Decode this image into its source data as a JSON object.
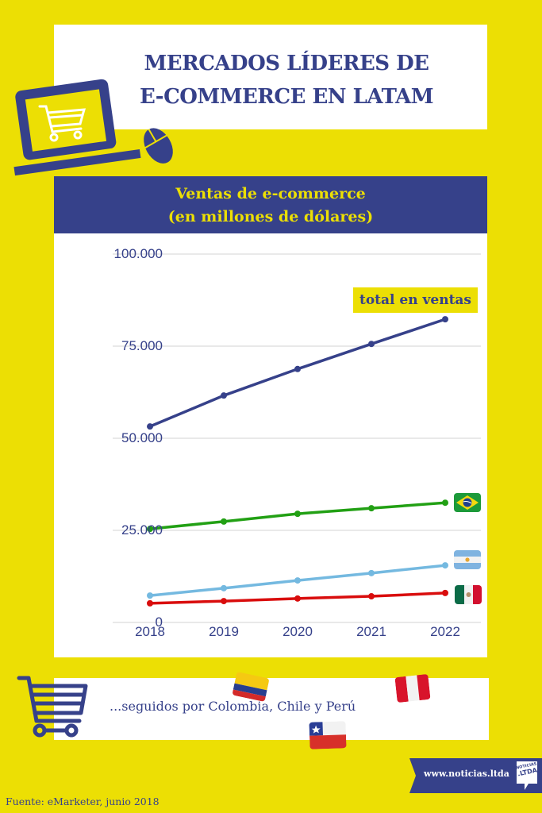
{
  "header": {
    "title_line1": "MERCADOS LÍDERES DE",
    "title_line2": "E-COMMERCE EN LATAM"
  },
  "chart_header": {
    "line1": "Ventas de e-commerce",
    "line2": "(en  millones de dólares)"
  },
  "chart_data": {
    "type": "line",
    "title": "Ventas de e-commerce (en millones de dólares)",
    "xlabel": "",
    "ylabel": "",
    "x": [
      "2018",
      "2019",
      "2020",
      "2021",
      "2022"
    ],
    "ylim": [
      0,
      100000
    ],
    "yticks": [
      "0",
      "25.000",
      "50.000",
      "75.000",
      "100.000"
    ],
    "grid": true,
    "series": [
      {
        "name": "total en ventas",
        "color": "#36418a",
        "values": [
          53200,
          61600,
          68800,
          75600,
          82300
        ]
      },
      {
        "name": "Brasil",
        "color": "#22a014",
        "values": [
          25400,
          27400,
          29500,
          31000,
          32500
        ]
      },
      {
        "name": "Argentina",
        "color": "#74b9e0",
        "values": [
          7300,
          9300,
          11400,
          13400,
          15500
        ]
      },
      {
        "name": "México",
        "color": "#d90d0d",
        "values": [
          5200,
          5800,
          6500,
          7100,
          8000
        ]
      }
    ],
    "annotations": [
      "total en ventas"
    ]
  },
  "footer_box": {
    "text": "...seguidos por Colombia, Chile y Perú",
    "flags": [
      "colombia-flag",
      "peru-flag",
      "chile-flag"
    ]
  },
  "banner": {
    "url": "www.noticias.ltda",
    "logo_line1": "NOTICIAS",
    "logo_line2": ".LTDA"
  },
  "source": "Fuente: eMarketer, junio 2018",
  "colors": {
    "background": "#ecdf04",
    "navy": "#36418a",
    "white": "#ffffff"
  }
}
